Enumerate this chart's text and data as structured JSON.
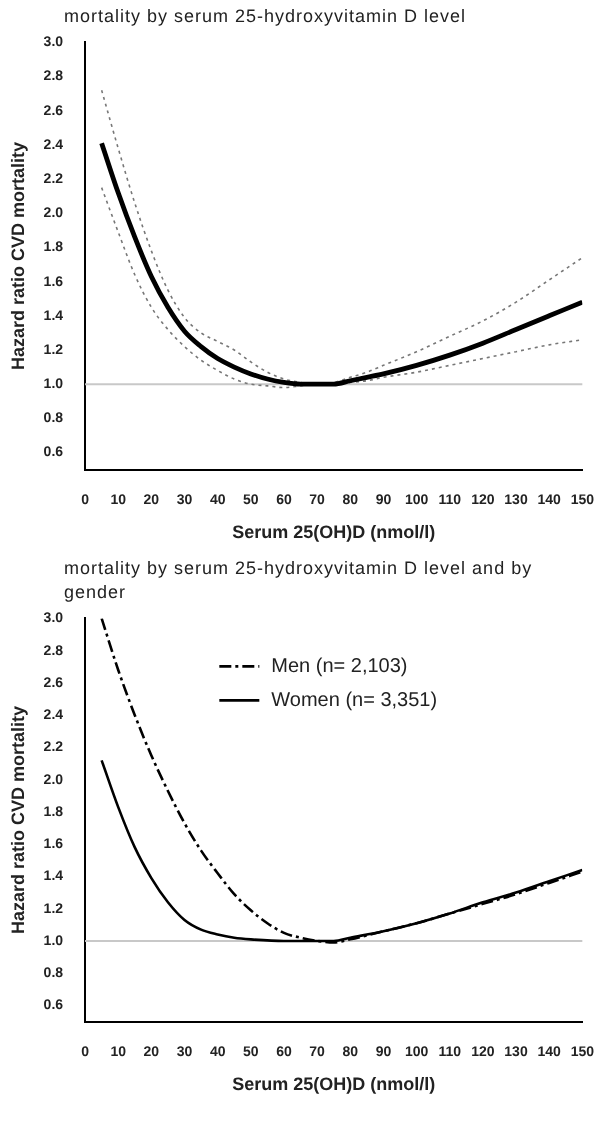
{
  "chart_data": [
    {
      "type": "line",
      "title": "mortality by serum 25-hydroxyvitamin D level",
      "xlabel": "Serum 25(OH)D (nmol/l)",
      "ylabel": "Hazard ratio CVD mortality",
      "xlim": [
        0,
        150
      ],
      "xticks": [
        0,
        10,
        20,
        30,
        40,
        50,
        60,
        70,
        80,
        90,
        100,
        110,
        120,
        130,
        140,
        150
      ],
      "ylim": [
        0.5,
        3.0
      ],
      "yticks": [
        0.6,
        0.8,
        {
          "value": 1,
          "label": "1.0"
        },
        1.2,
        1.4,
        1.6,
        1.8,
        {
          "value": 2,
          "label": "2.0"
        },
        2.2,
        2.4,
        2.6,
        2.8,
        {
          "value": 3,
          "label": "3.0"
        }
      ],
      "grid": false,
      "marker": "none",
      "legend": false,
      "ref_lines": [
        {
          "axis": "y",
          "value": 1,
          "color": "#c8c8c8"
        }
      ],
      "x": [
        5,
        10,
        15,
        20,
        25,
        30,
        35,
        40,
        45,
        50,
        55,
        60,
        65,
        70,
        75,
        80,
        85,
        90,
        100,
        110,
        120,
        130,
        140,
        150
      ],
      "series": [
        {
          "color": "#000000",
          "line_style": "solid",
          "values": [
            2.41,
            2.12,
            1.86,
            1.63,
            1.45,
            1.31,
            1.22,
            1.15,
            1.1,
            1.06,
            1.03,
            1.01,
            1.0,
            1.0,
            1.0,
            1.02,
            1.04,
            1.06,
            1.11,
            1.17,
            1.24,
            1.32,
            1.4,
            1.48
          ]
        },
        {
          "color": "#777777",
          "line_style": "dotted",
          "values": [
            2.15,
            1.89,
            1.64,
            1.45,
            1.32,
            1.22,
            1.14,
            1.08,
            1.03,
            1.0,
            0.99,
            0.98,
            0.99,
            1.0,
            1.0,
            1.01,
            1.02,
            1.04,
            1.07,
            1.11,
            1.15,
            1.19,
            1.23,
            1.26
          ]
        },
        {
          "color": "#777777",
          "line_style": "dotted",
          "values": [
            2.72,
            2.38,
            2.06,
            1.78,
            1.55,
            1.39,
            1.3,
            1.25,
            1.2,
            1.13,
            1.07,
            1.03,
            1.01,
            1.0,
            1.01,
            1.04,
            1.07,
            1.11,
            1.19,
            1.28,
            1.37,
            1.48,
            1.61,
            1.74
          ]
        }
      ]
    },
    {
      "type": "line",
      "title": "mortality by serum 25-hydroxyvitamin D level and by gender",
      "xlabel": "Serum 25(OH)D (nmol/l)",
      "ylabel": "Hazard ratio CVD mortality",
      "xlim": [
        0,
        150
      ],
      "xticks": [
        0,
        10,
        20,
        30,
        40,
        50,
        60,
        70,
        80,
        90,
        100,
        110,
        120,
        130,
        140,
        150
      ],
      "ylim": [
        0.5,
        3.0
      ],
      "yticks": [
        0.6,
        0.8,
        {
          "value": 1,
          "label": "1.0"
        },
        1.2,
        1.4,
        1.6,
        1.8,
        {
          "value": 2,
          "label": "2.0"
        },
        2.2,
        2.4,
        2.6,
        2.8,
        {
          "value": 3,
          "label": "3.0"
        }
      ],
      "grid": false,
      "marker": "none",
      "legend": "top",
      "ref_lines": [
        {
          "axis": "y",
          "value": 1,
          "color": "#c8c8c8"
        }
      ],
      "series": [
        {
          "name": "Men (n= 2,103)",
          "color": "#000000",
          "line_style": "dashed",
          "x": [
            5,
            10,
            15,
            20,
            25,
            30,
            35,
            40,
            45,
            50,
            55,
            60,
            65,
            70,
            75,
            80,
            90,
            100,
            110,
            120,
            130,
            140,
            150
          ],
          "values": [
            3.0,
            2.68,
            2.4,
            2.15,
            1.93,
            1.73,
            1.56,
            1.42,
            1.29,
            1.19,
            1.11,
            1.05,
            1.02,
            1.0,
            0.99,
            1.01,
            1.06,
            1.11,
            1.17,
            1.23,
            1.29,
            1.36,
            1.43
          ]
        },
        {
          "name": "Women (n= 3,351)",
          "color": "#000000",
          "line_style": "solid",
          "x": [
            5,
            10,
            15,
            20,
            25,
            30,
            35,
            40,
            45,
            50,
            60,
            70,
            75,
            80,
            90,
            100,
            110,
            120,
            130,
            140,
            150
          ],
          "values": [
            2.12,
            1.83,
            1.58,
            1.39,
            1.24,
            1.13,
            1.07,
            1.04,
            1.02,
            1.01,
            1.0,
            1.0,
            1.0,
            1.02,
            1.06,
            1.11,
            1.17,
            1.24,
            1.3,
            1.37,
            1.44
          ]
        }
      ]
    }
  ]
}
